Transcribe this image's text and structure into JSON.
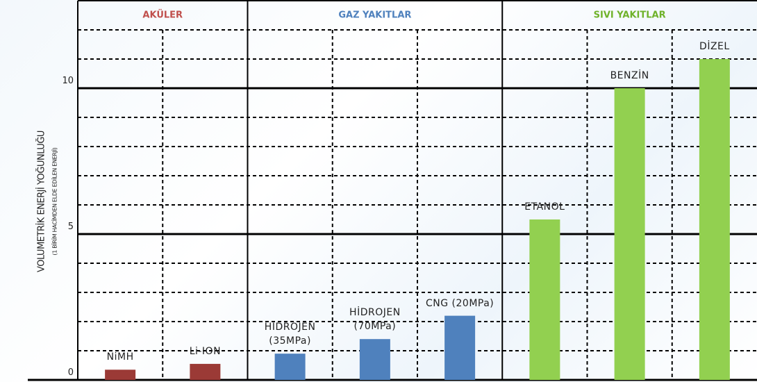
{
  "chart_data": {
    "type": "bar",
    "ylabel": "VOLUMETRİK ENERJİ YOĞUNLUĞU",
    "ysublabel": "(1 BİRİM HACİMDEN ELDE EDİLEN ENERJİ)",
    "ylim": [
      0,
      13
    ],
    "yticks": [
      0,
      5,
      10
    ],
    "minor_yticks": [
      1,
      2,
      3,
      4,
      6,
      7,
      8,
      9,
      11,
      12
    ],
    "grid": true,
    "groups": [
      {
        "name": "AKÜLER",
        "label_color": "#c0504d",
        "color": "#9b3a36",
        "categories": [
          "NiMH",
          "Li-ION"
        ],
        "values": [
          0.35,
          0.55
        ]
      },
      {
        "name": "GAZ YAKITLAR",
        "label_color": "#4f81bd",
        "color": "#4f81bd",
        "categories": [
          "HİDROJEN\n(35MPa)",
          "HİDROJEN\n(70MPa)",
          "CNG (20MPa)"
        ],
        "values": [
          0.9,
          1.4,
          2.2
        ]
      },
      {
        "name": "SIVI YAKITLAR",
        "label_color": "#6fb22a",
        "color": "#92d050",
        "categories": [
          "ETANOL",
          "BENZİN",
          "DİZEL"
        ],
        "values": [
          5.5,
          10,
          11
        ]
      }
    ]
  }
}
